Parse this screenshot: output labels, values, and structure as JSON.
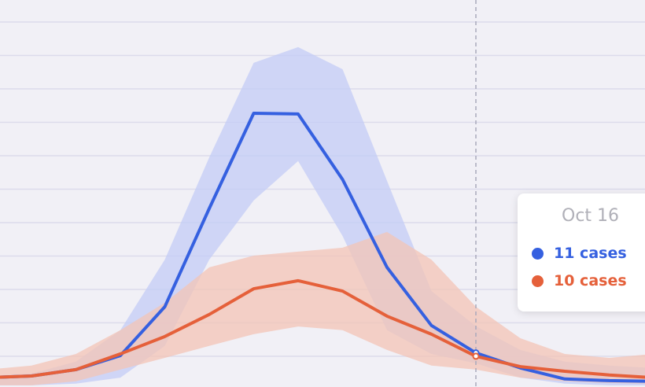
{
  "chart_data": {
    "type": "line",
    "categories": [
      null,
      null,
      null,
      null,
      null,
      null,
      null,
      null,
      null,
      null,
      null,
      "Oct 16",
      null,
      null,
      null,
      null
    ],
    "series": [
      {
        "name": "cases",
        "color": "#3560e0",
        "band_color": "#c3ccf6",
        "values": [
          3.6,
          4.1,
          6,
          10.2,
          24.8,
          54.2,
          82.7,
          82.5,
          62.9,
          36.6,
          19.2,
          11,
          6.5,
          3.2,
          2.7,
          2.5
        ],
        "value_labels": [
          null,
          null,
          null,
          null,
          null,
          null,
          null,
          null,
          null,
          null,
          null,
          "11 cases",
          null,
          null,
          null,
          null
        ],
        "upper": [
          4.1,
          4.8,
          8.4,
          17.8,
          38.9,
          69.5,
          97.8,
          102.5,
          95.9,
          62.5,
          29.5,
          19,
          11.9,
          8.4,
          7.2,
          6.5
        ],
        "lower": [
          1.3,
          1.3,
          1.8,
          3.6,
          13.1,
          38.9,
          56.6,
          68.4,
          46,
          17.8,
          10.7,
          7.9,
          3.6,
          1.8,
          1.3,
          1.3
        ]
      },
      {
        "name": "cases",
        "color": "#e5603a",
        "band_color": "#f3c4b6",
        "values": [
          3.6,
          4.1,
          6,
          10.7,
          15.9,
          22.5,
          30.2,
          32.6,
          29.5,
          22,
          16.6,
          10,
          6.9,
          5.5,
          4.4,
          3.6
        ],
        "value_labels": [
          null,
          null,
          null,
          null,
          null,
          null,
          null,
          null,
          null,
          null,
          null,
          "10 cases",
          null,
          null,
          null,
          null
        ],
        "upper": [
          6,
          7.2,
          10.7,
          17.8,
          26,
          36.6,
          40.1,
          41.3,
          42.5,
          47.2,
          38.9,
          24.8,
          15.4,
          10.7,
          9.5,
          10.7
        ],
        "lower": [
          1.3,
          1.3,
          2.5,
          6,
          9.5,
          13.1,
          16.6,
          18.9,
          17.8,
          11.9,
          7.2,
          6,
          3.6,
          2.5,
          2,
          1.8
        ]
      }
    ],
    "highlight_index": 11,
    "ylim": [
      0.8,
      116.6
    ],
    "yticks": [
      10,
      20,
      30,
      40,
      50,
      60,
      70,
      80,
      90,
      100,
      110
    ],
    "grid": true
  }
}
